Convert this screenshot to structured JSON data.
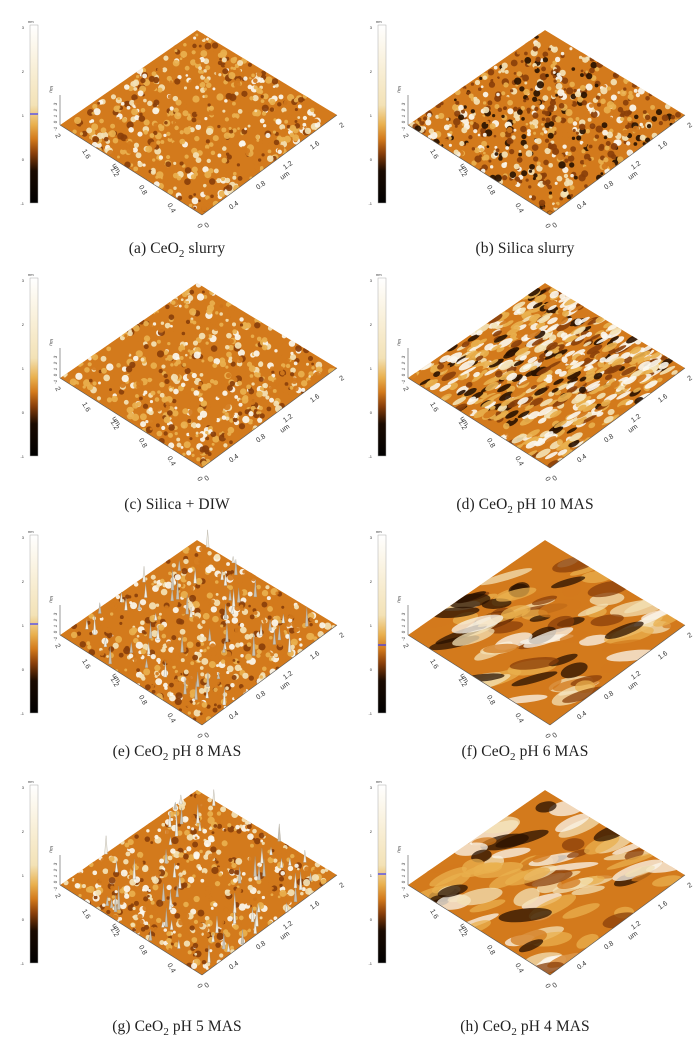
{
  "panels": [
    {
      "id": "a",
      "caption_prefix": "(a) CeO",
      "caption_sub": "2",
      "caption_suffix": " slurry",
      "texture": "fine",
      "marker_color": "#3a3aff"
    },
    {
      "id": "b",
      "caption_prefix": "(b) Silica slurry",
      "caption_sub": "",
      "caption_suffix": "",
      "texture": "fine-dark",
      "marker_color": ""
    },
    {
      "id": "c",
      "caption_prefix": "(c) Silica + DIW",
      "caption_sub": "",
      "caption_suffix": "",
      "texture": "fine",
      "marker_color": ""
    },
    {
      "id": "d",
      "caption_prefix": "(d) CeO",
      "caption_sub": "2",
      "caption_suffix": " pH 10 MAS",
      "texture": "ridged",
      "marker_color": ""
    },
    {
      "id": "e",
      "caption_prefix": "(e) CeO",
      "caption_sub": "2",
      "caption_suffix": " pH 8 MAS",
      "texture": "spiky",
      "marker_color": "#3a3aff"
    },
    {
      "id": "f",
      "caption_prefix": "(f) CeO",
      "caption_sub": "2",
      "caption_suffix": " pH 6 MAS",
      "texture": "smooth",
      "marker_color": "#3a3aff"
    },
    {
      "id": "g",
      "caption_prefix": "(g) CeO",
      "caption_sub": "2",
      "caption_suffix": " pH 5 MAS",
      "texture": "spiky",
      "marker_color": ""
    },
    {
      "id": "h",
      "caption_prefix": "(h) CeO",
      "caption_sub": "2",
      "caption_suffix": " pH 4 MAS",
      "texture": "smooth",
      "marker_color": "#3a3aff"
    }
  ],
  "axis": {
    "z_unit": "nm",
    "xy_unit": "um",
    "x_ticks": [
      "0",
      "0.4",
      "0.8",
      "1.2",
      "1.6",
      "2"
    ],
    "y_ticks": [
      "0",
      "0.4",
      "0.8",
      "1.2",
      "1.6",
      "2"
    ],
    "z_ticks": [
      "-1",
      "0",
      "1",
      "2",
      "3"
    ],
    "colorbar_ticks": [
      "-1",
      "0",
      "1",
      "2",
      "3"
    ]
  },
  "colors": {
    "dark": "#2a1200",
    "brown": "#8a3f0a",
    "orange": "#d37a1c",
    "gold": "#e9b04e",
    "light": "#f3e2b6",
    "white": "#fbf7ee"
  }
}
